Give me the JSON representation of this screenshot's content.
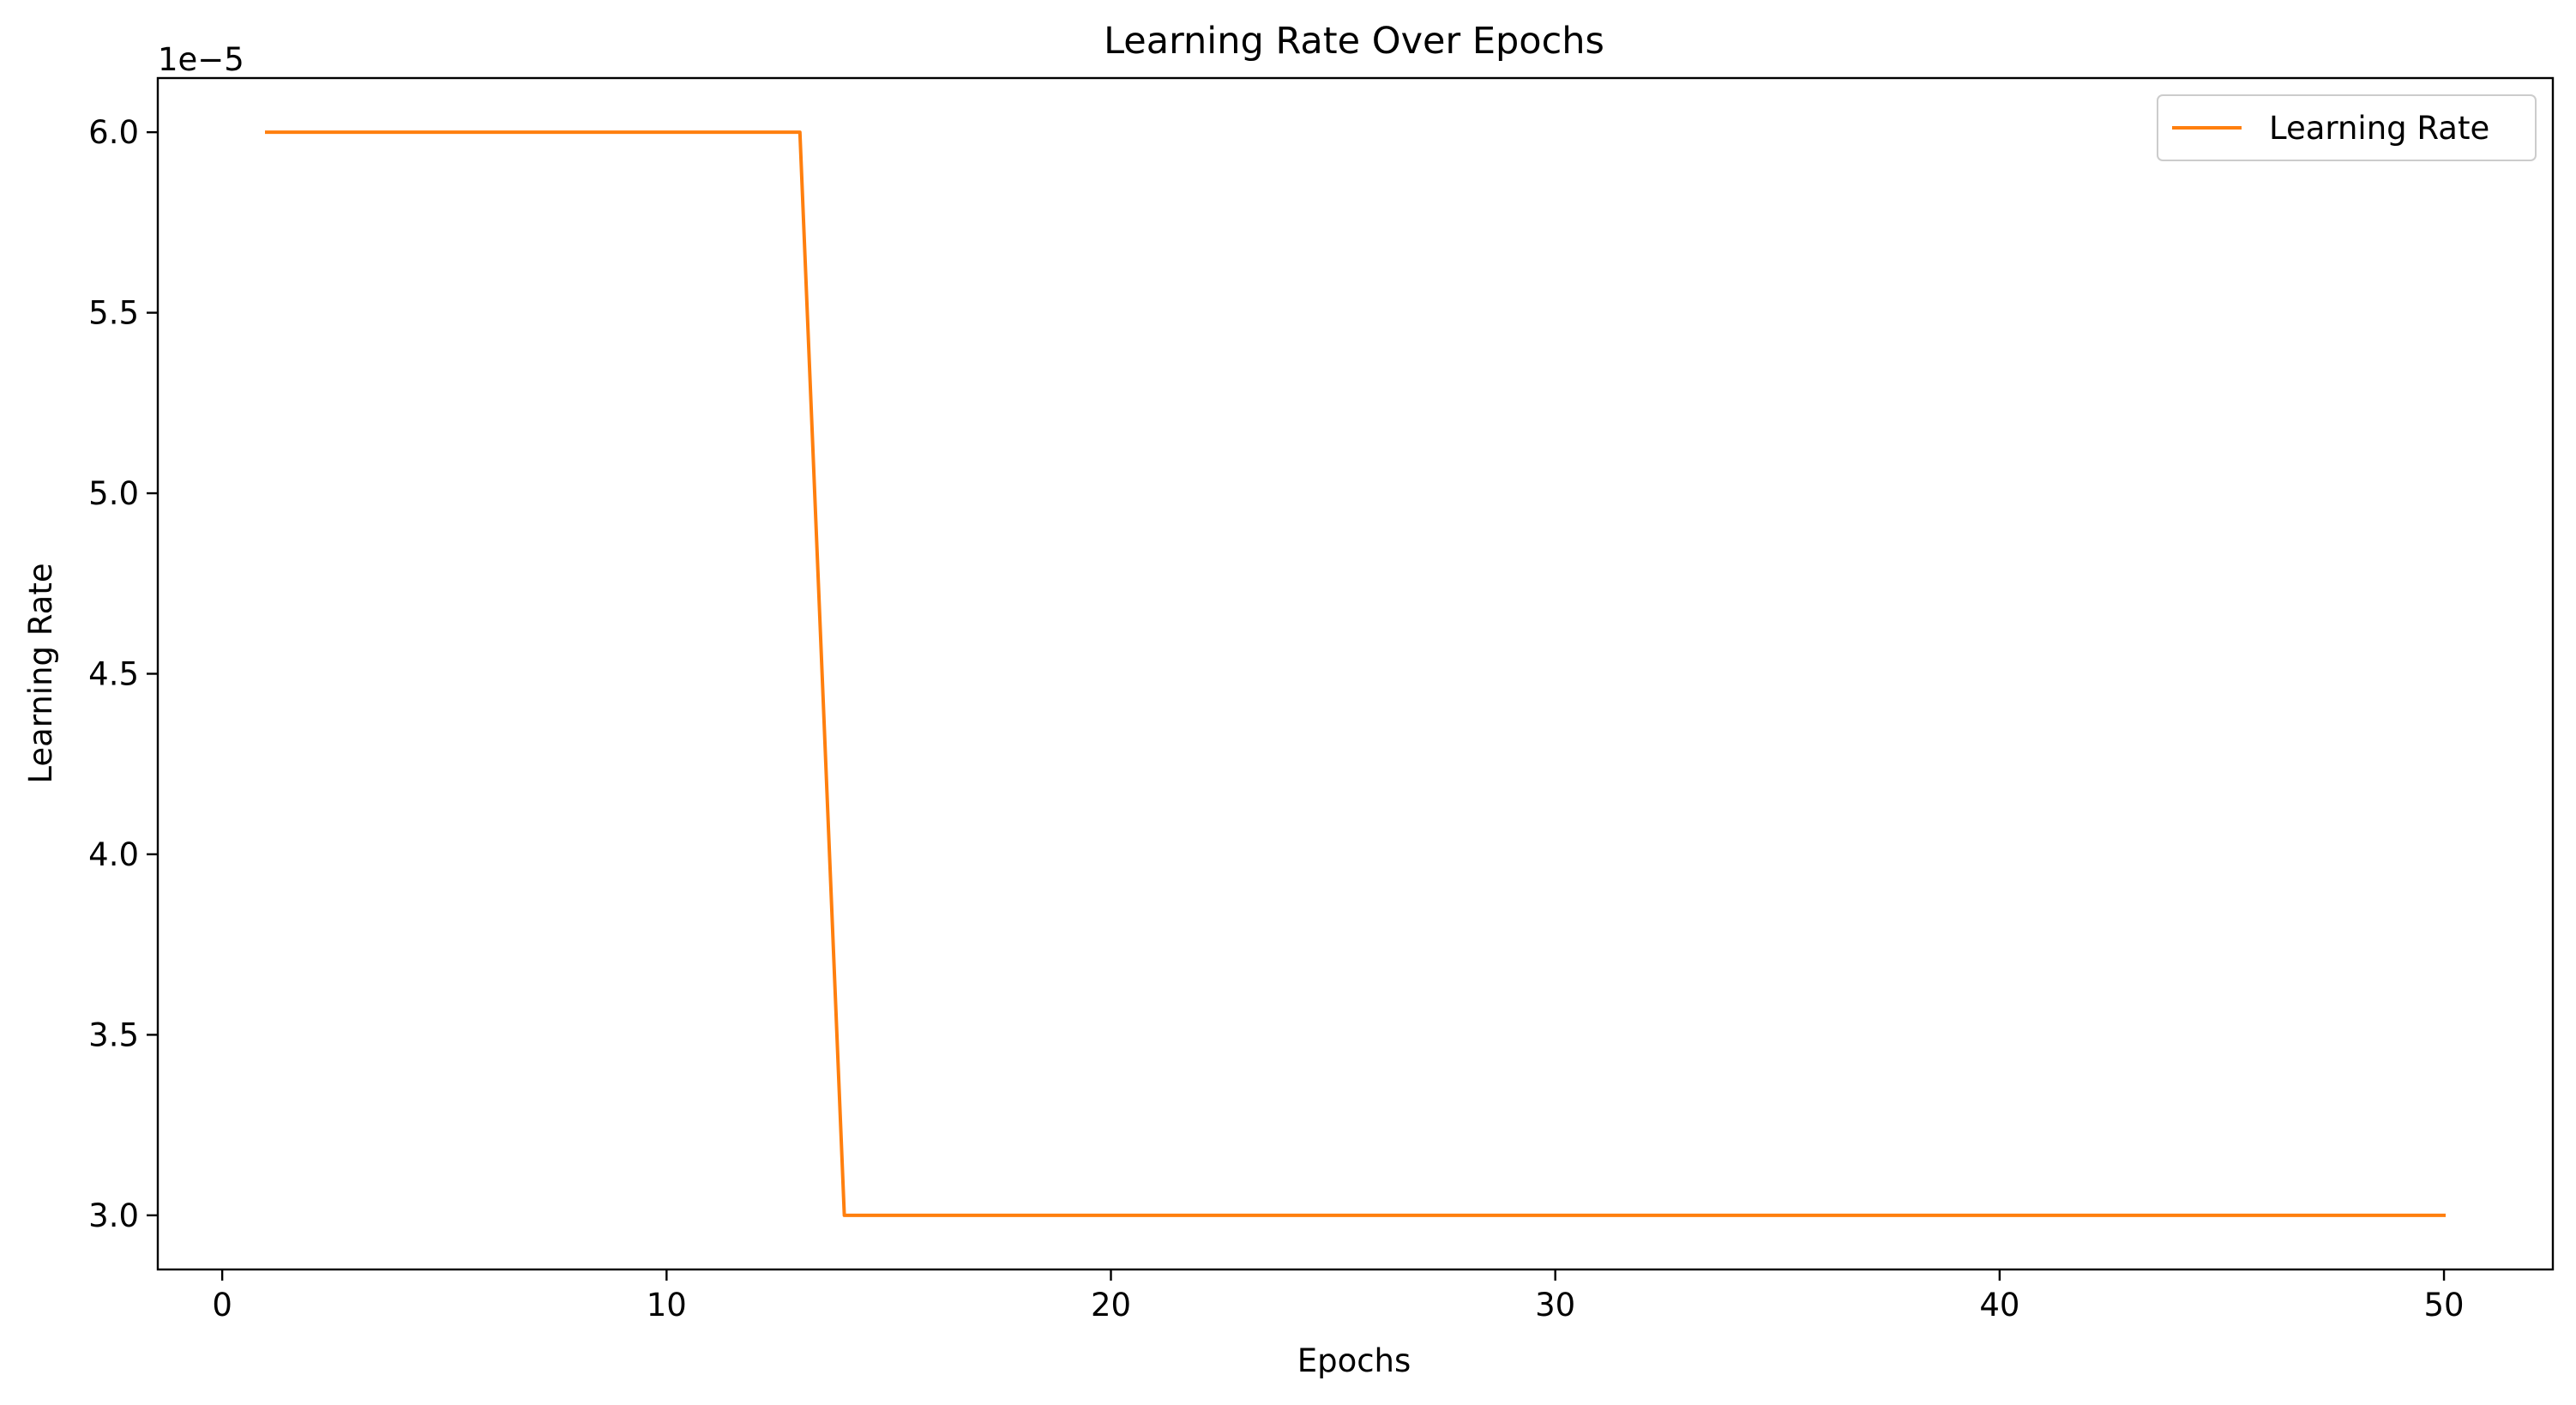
{
  "chart_data": {
    "type": "line",
    "title": "Learning Rate Over Epochs",
    "xlabel": "Epochs",
    "ylabel": "Learning Rate",
    "y_offset_label": "1e−5",
    "xlim": [
      -1.45,
      52.45
    ],
    "ylim": [
      2.85,
      6.15
    ],
    "y_scale_exponent": -5,
    "x_ticks": [
      0,
      10,
      20,
      30,
      40,
      50
    ],
    "x_tick_labels": [
      "0",
      "10",
      "20",
      "30",
      "40",
      "50"
    ],
    "y_ticks": [
      3.0,
      3.5,
      4.0,
      4.5,
      5.0,
      5.5,
      6.0
    ],
    "y_tick_labels": [
      "3.0",
      "3.5",
      "4.0",
      "4.5",
      "5.0",
      "5.5",
      "6.0"
    ],
    "grid": false,
    "legend_position": "top-right",
    "series": [
      {
        "name": "Learning Rate",
        "color": "#ff7f0e",
        "x": [
          1,
          2,
          3,
          4,
          5,
          6,
          7,
          8,
          9,
          10,
          11,
          12,
          13,
          14,
          15,
          16,
          17,
          18,
          19,
          20,
          21,
          22,
          23,
          24,
          25,
          26,
          27,
          28,
          29,
          30,
          31,
          32,
          33,
          34,
          35,
          36,
          37,
          38,
          39,
          40,
          41,
          42,
          43,
          44,
          45,
          46,
          47,
          48,
          49,
          50
        ],
        "y": [
          6.0,
          6.0,
          6.0,
          6.0,
          6.0,
          6.0,
          6.0,
          6.0,
          6.0,
          6.0,
          6.0,
          6.0,
          6.0,
          3.0,
          3.0,
          3.0,
          3.0,
          3.0,
          3.0,
          3.0,
          3.0,
          3.0,
          3.0,
          3.0,
          3.0,
          3.0,
          3.0,
          3.0,
          3.0,
          3.0,
          3.0,
          3.0,
          3.0,
          3.0,
          3.0,
          3.0,
          3.0,
          3.0,
          3.0,
          3.0,
          3.0,
          3.0,
          3.0,
          3.0,
          3.0,
          3.0,
          3.0,
          3.0,
          3.0,
          3.0
        ]
      }
    ]
  }
}
